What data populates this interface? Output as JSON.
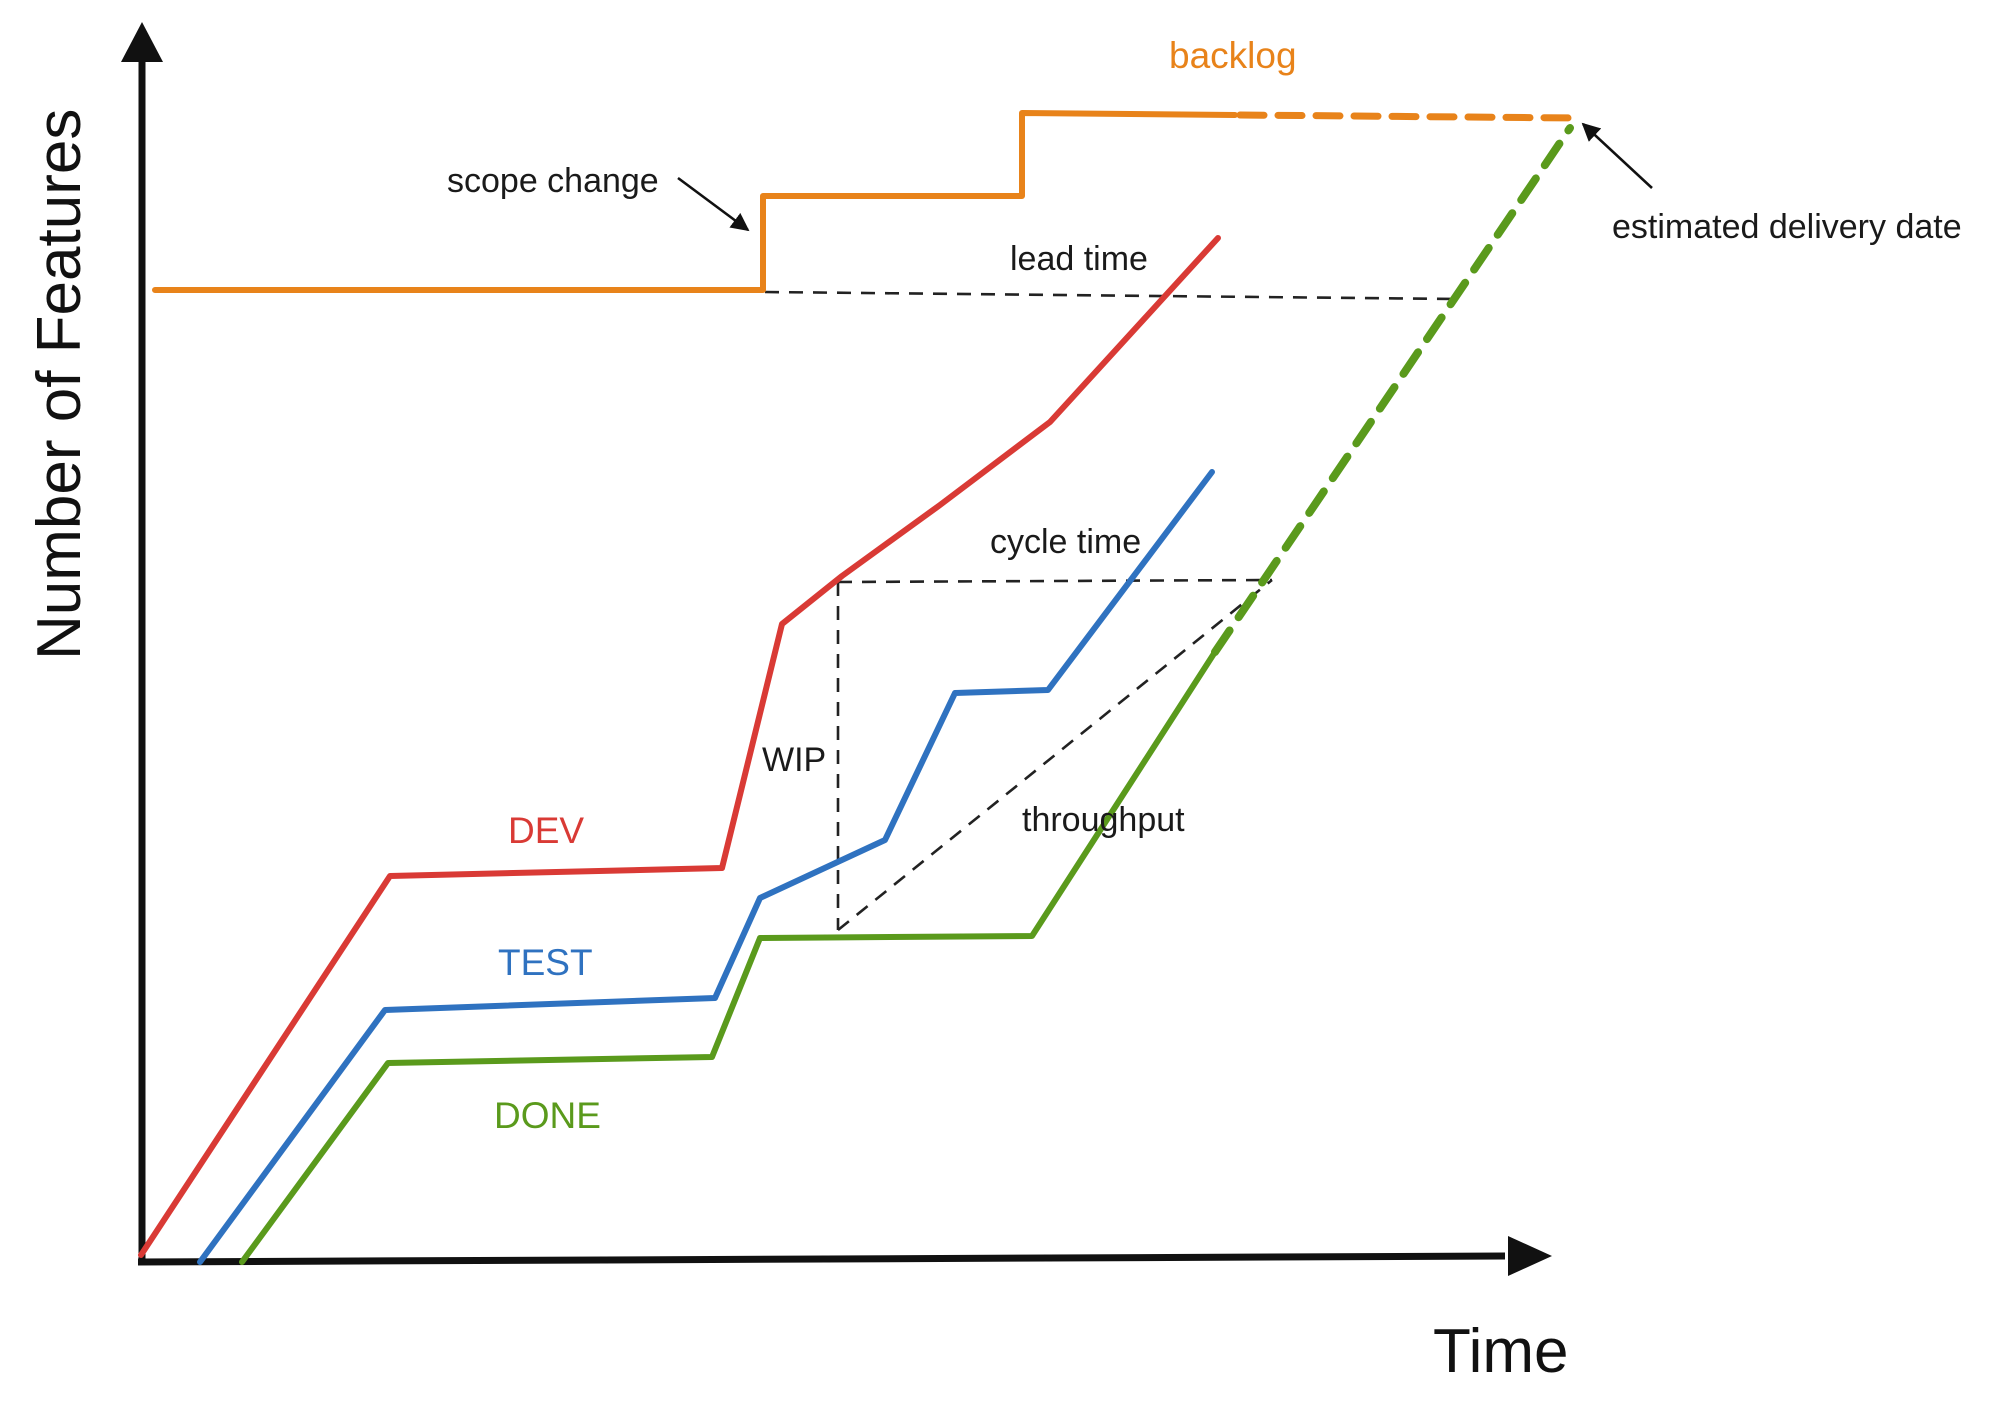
{
  "diagram": {
    "axes": {
      "y_label": "Number of Features",
      "x_label": "Time"
    },
    "series": [
      {
        "key": "backlog",
        "label": "backlog",
        "color": "#e8831a"
      },
      {
        "key": "dev",
        "label": "DEV",
        "color": "#d93a35"
      },
      {
        "key": "test",
        "label": "TEST",
        "color": "#2f72c0"
      },
      {
        "key": "done",
        "label": "DONE",
        "color": "#5a9a1c"
      }
    ],
    "annotations": {
      "scope_change": "scope change",
      "lead_time": "lead time",
      "cycle_time": "cycle time",
      "wip": "WIP",
      "throughput": "throughput",
      "estimated_delivery": "estimated delivery date"
    }
  }
}
